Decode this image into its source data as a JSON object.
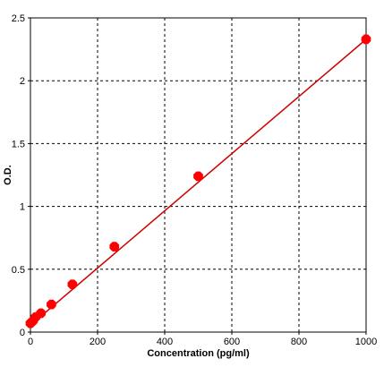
{
  "chart_data": {
    "type": "scatter",
    "xlabel": "Concentration (pg/ml)",
    "ylabel": "O.D.",
    "xlim": [
      0,
      1000
    ],
    "ylim": [
      0,
      2.5
    ],
    "x_ticks": [
      0,
      200,
      400,
      600,
      800,
      1000
    ],
    "y_ticks": [
      0,
      0.5,
      1,
      1.5,
      2,
      2.5
    ],
    "x_tick_labels": [
      "0",
      "200",
      "400",
      "600",
      "800",
      "1000"
    ],
    "y_tick_labels": [
      "0",
      "0.5",
      "1",
      "1.5",
      "2",
      "2.5"
    ],
    "grid": "dashed",
    "series": [
      {
        "x": [
          0,
          7.8,
          15.6,
          31.2,
          62.5,
          125,
          250,
          500,
          1000
        ],
        "y": [
          0.07,
          0.09,
          0.12,
          0.15,
          0.22,
          0.38,
          0.68,
          1.24,
          2.33
        ],
        "color": "#ff0000",
        "marker": "octagon"
      }
    ],
    "fit_line": {
      "x": [
        0,
        1000
      ],
      "y": [
        0.055,
        2.33
      ],
      "color": "#cc0000"
    }
  }
}
